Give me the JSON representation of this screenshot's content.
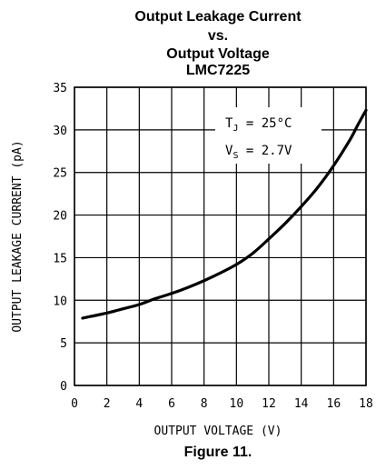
{
  "chart_data": {
    "type": "line",
    "title_lines": [
      "Output Leakage Current",
      "vs.",
      "Output Voltage",
      "LMC7225"
    ],
    "xlabel": "OUTPUT VOLTAGE (V)",
    "ylabel": "OUTPUT LEAKAGE CURRENT (pA)",
    "xlim": [
      0,
      18
    ],
    "ylim": [
      0,
      35
    ],
    "xticks": [
      0,
      2,
      4,
      6,
      8,
      10,
      12,
      14,
      16,
      18
    ],
    "yticks": [
      0,
      5,
      10,
      15,
      20,
      25,
      30,
      35
    ],
    "grid": true,
    "annotation": {
      "line1_main": "T",
      "line1_sub": "J",
      "line1_rest": " = 25°C",
      "line2_main": "V",
      "line2_sub": "S",
      "line2_rest": " = 2.7V"
    },
    "series": [
      {
        "x": [
          0.5,
          1,
          2,
          3,
          4,
          5,
          6,
          7,
          8,
          9,
          10,
          11,
          12,
          13,
          14,
          15,
          16,
          17,
          17.5,
          18
        ],
        "y": [
          7.9,
          8.1,
          8.5,
          9.0,
          9.5,
          10.2,
          10.8,
          11.5,
          12.3,
          13.2,
          14.2,
          15.5,
          17.2,
          19.0,
          21.0,
          23.2,
          25.8,
          28.8,
          30.6,
          32.3
        ]
      }
    ]
  },
  "caption": "Figure 11."
}
